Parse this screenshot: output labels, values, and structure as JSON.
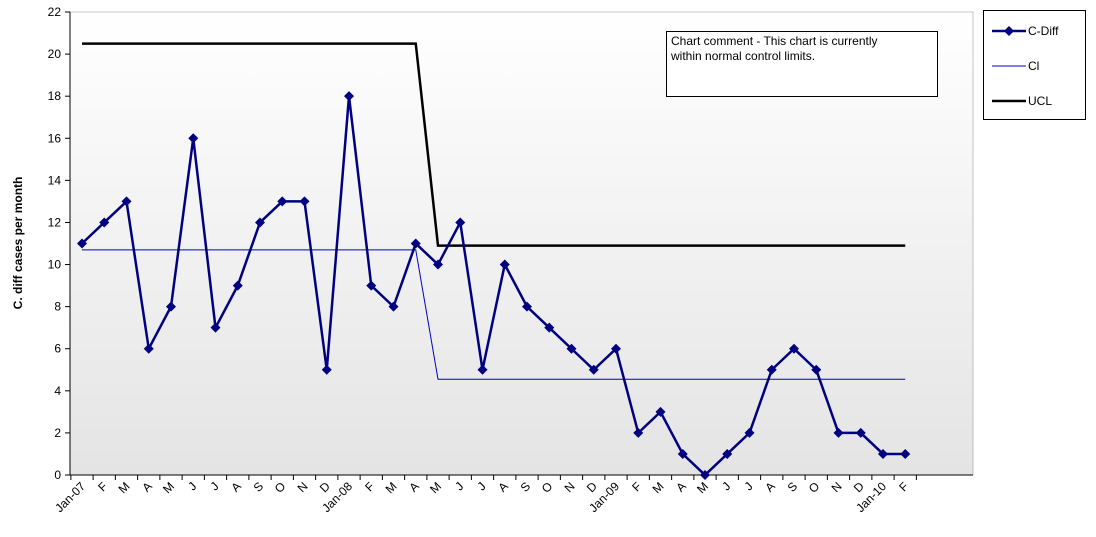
{
  "chart_data": {
    "type": "line",
    "title": "",
    "xlabel": "",
    "ylabel": "C. diff cases per month",
    "ylim": [
      0,
      22
    ],
    "yticks": [
      0,
      2,
      4,
      6,
      8,
      10,
      12,
      14,
      16,
      18,
      20,
      22
    ],
    "grid": false,
    "legend_position": "top-right, outside plot",
    "categories": [
      "Jan-07",
      "F",
      "M",
      "A",
      "M",
      "J",
      "J",
      "A",
      "S",
      "O",
      "N",
      "D",
      "Jan-08",
      "F",
      "M",
      "A",
      "M",
      "J",
      "J",
      "A",
      "S",
      "O",
      "N",
      "D",
      "Jan-09",
      "F",
      "M",
      "A",
      "M",
      "J",
      "J",
      "A",
      "S",
      "O",
      "N",
      "D",
      "Jan-10",
      "F"
    ],
    "series": [
      {
        "name": "C-Diff",
        "color": "#000080",
        "marker": "diamond",
        "values": [
          11,
          12,
          13,
          6,
          8,
          16,
          7,
          9,
          12,
          13,
          13,
          5,
          18,
          9,
          8,
          11,
          10,
          12,
          5,
          10,
          8,
          7,
          6,
          5,
          6,
          2,
          3,
          1,
          0,
          1,
          2,
          5,
          6,
          5,
          2,
          2,
          1,
          1
        ]
      },
      {
        "name": "Cl",
        "color": "#0000CC",
        "marker": "none",
        "values": [
          10.7,
          10.7,
          10.7,
          10.7,
          10.7,
          10.7,
          10.7,
          10.7,
          10.7,
          10.7,
          10.7,
          10.7,
          10.7,
          10.7,
          10.7,
          10.7,
          4.55,
          4.55,
          4.55,
          4.55,
          4.55,
          4.55,
          4.55,
          4.55,
          4.55,
          4.55,
          4.55,
          4.55,
          4.55,
          4.55,
          4.55,
          4.55,
          4.55,
          4.55,
          4.55,
          4.55,
          4.55,
          4.55
        ]
      },
      {
        "name": "UCL",
        "color": "#000000",
        "marker": "none",
        "values": [
          20.5,
          20.5,
          20.5,
          20.5,
          20.5,
          20.5,
          20.5,
          20.5,
          20.5,
          20.5,
          20.5,
          20.5,
          20.5,
          20.5,
          20.5,
          20.5,
          10.9,
          10.9,
          10.9,
          10.9,
          10.9,
          10.9,
          10.9,
          10.9,
          10.9,
          10.9,
          10.9,
          10.9,
          10.9,
          10.9,
          10.9,
          10.9,
          10.9,
          10.9,
          10.9,
          10.9,
          10.9,
          10.9
        ]
      }
    ],
    "annotations": [
      "Chart comment - This chart is currently within normal control limits."
    ]
  },
  "comment": {
    "line1": "Chart comment - This chart is currently",
    "line2": "within normal control limits."
  },
  "legend": {
    "items": [
      "C-Diff",
      "Cl",
      "UCL"
    ]
  },
  "colors": {
    "plot_background_top": "#ffffff",
    "plot_background_bottom": "#e6e6e6",
    "cdiff": "#000080",
    "cl": "#0000CC",
    "ucl": "#000000"
  }
}
